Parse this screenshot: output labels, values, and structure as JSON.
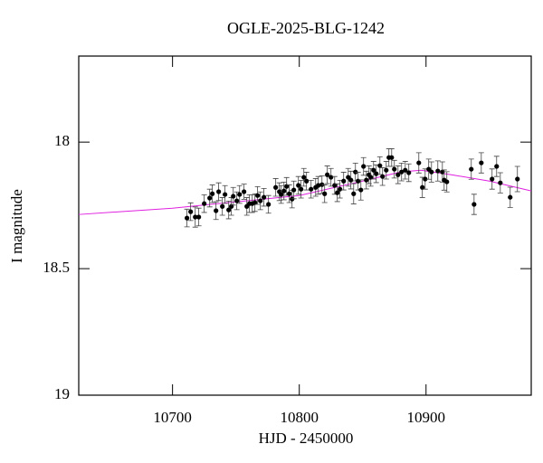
{
  "chart_data": {
    "type": "scatter",
    "title": "OGLE-2025-BLG-1242",
    "x_label": "HJD - 2450000",
    "y_label": "I magnitude",
    "xlim": [
      10626,
      10983
    ],
    "ylim": [
      17.66,
      19
    ],
    "y_inverted": true,
    "xticks": [
      10700,
      10800,
      10900
    ],
    "yticks": [
      18,
      18.5,
      19
    ],
    "color": "#000000",
    "model_color": "#e020e0",
    "x": [
      10711.4,
      10714.3,
      10717.9,
      10720.7,
      10725,
      10729.3,
      10731.4,
      10734.3,
      10736.4,
      10739.3,
      10741.4,
      10744.3,
      10746.4,
      10747.9,
      10750.7,
      10752.9,
      10756.4,
      10758.6,
      10760.7,
      10762.9,
      10765,
      10767.1,
      10769.3,
      10772.1,
      10775.7,
      10781.4,
      10784.3,
      10785.7,
      10787.9,
      10790,
      10792.1,
      10794.3,
      10795.7,
      10799.3,
      10801.4,
      10803.6,
      10805.7,
      10809.3,
      10812.9,
      10815,
      10817.9,
      10820,
      10822.1,
      10825,
      10827.9,
      10830,
      10832.1,
      10835,
      10838.6,
      10840.7,
      10842.9,
      10844.3,
      10846.4,
      10848.6,
      10850.7,
      10852.9,
      10855,
      10856.4,
      10858.6,
      10860.7,
      10863.6,
      10865.7,
      10868.6,
      10870.7,
      10872.9,
      10875,
      10877.9,
      10880.7,
      10883.6,
      10886.4,
      10894.3,
      10897.1,
      10899.3,
      10902.1,
      10904.3,
      10909.3,
      10912.9,
      10914.3,
      10916.4,
      10935.7,
      10937.9,
      10943.6,
      10952.1,
      10955.7,
      10958.6,
      10966.4,
      10972.1
    ],
    "values": [
      18.3,
      18.275,
      18.296,
      18.296,
      18.243,
      18.221,
      18.204,
      18.271,
      18.196,
      18.254,
      18.207,
      18.268,
      18.254,
      18.214,
      18.232,
      18.207,
      18.196,
      18.254,
      18.243,
      18.243,
      18.239,
      18.211,
      18.232,
      18.218,
      18.246,
      18.179,
      18.196,
      18.207,
      18.193,
      18.175,
      18.204,
      18.225,
      18.189,
      18.171,
      18.186,
      18.139,
      18.154,
      18.186,
      18.179,
      18.171,
      18.168,
      18.204,
      18.129,
      18.139,
      18.171,
      18.2,
      18.186,
      18.154,
      18.139,
      18.15,
      18.204,
      18.118,
      18.154,
      18.189,
      18.096,
      18.15,
      18.129,
      18.139,
      18.111,
      18.125,
      18.093,
      18.136,
      18.111,
      18.061,
      18.061,
      18.107,
      18.129,
      18.118,
      18.111,
      18.121,
      18.082,
      18.179,
      18.146,
      18.107,
      18.118,
      18.114,
      18.118,
      18.15,
      18.157,
      18.107,
      18.246,
      18.082,
      18.146,
      18.096,
      18.161,
      18.218,
      18.146
    ],
    "errors": [
      0.035,
      0.035,
      0.04,
      0.035,
      0.035,
      0.035,
      0.035,
      0.035,
      0.035,
      0.035,
      0.035,
      0.035,
      0.035,
      0.035,
      0.035,
      0.035,
      0.03,
      0.035,
      0.035,
      0.035,
      0.035,
      0.035,
      0.035,
      0.035,
      0.035,
      0.035,
      0.035,
      0.035,
      0.035,
      0.035,
      0.035,
      0.035,
      0.035,
      0.035,
      0.035,
      0.035,
      0.035,
      0.035,
      0.035,
      0.035,
      0.035,
      0.035,
      0.035,
      0.035,
      0.035,
      0.035,
      0.035,
      0.035,
      0.035,
      0.035,
      0.04,
      0.035,
      0.035,
      0.04,
      0.035,
      0.035,
      0.035,
      0.035,
      0.035,
      0.035,
      0.035,
      0.035,
      0.035,
      0.035,
      0.035,
      0.035,
      0.035,
      0.035,
      0.035,
      0.035,
      0.04,
      0.04,
      0.04,
      0.04,
      0.04,
      0.04,
      0.04,
      0.04,
      0.04,
      0.04,
      0.04,
      0.04,
      0.04,
      0.04,
      0.04,
      0.04,
      0.05
    ],
    "model": {
      "x": [
        10626,
        10700,
        10800,
        10850,
        10880,
        10896,
        10920,
        10950,
        10983
      ],
      "values": [
        18.286,
        18.261,
        18.211,
        18.154,
        18.118,
        18.111,
        18.129,
        18.154,
        18.193
      ]
    }
  }
}
